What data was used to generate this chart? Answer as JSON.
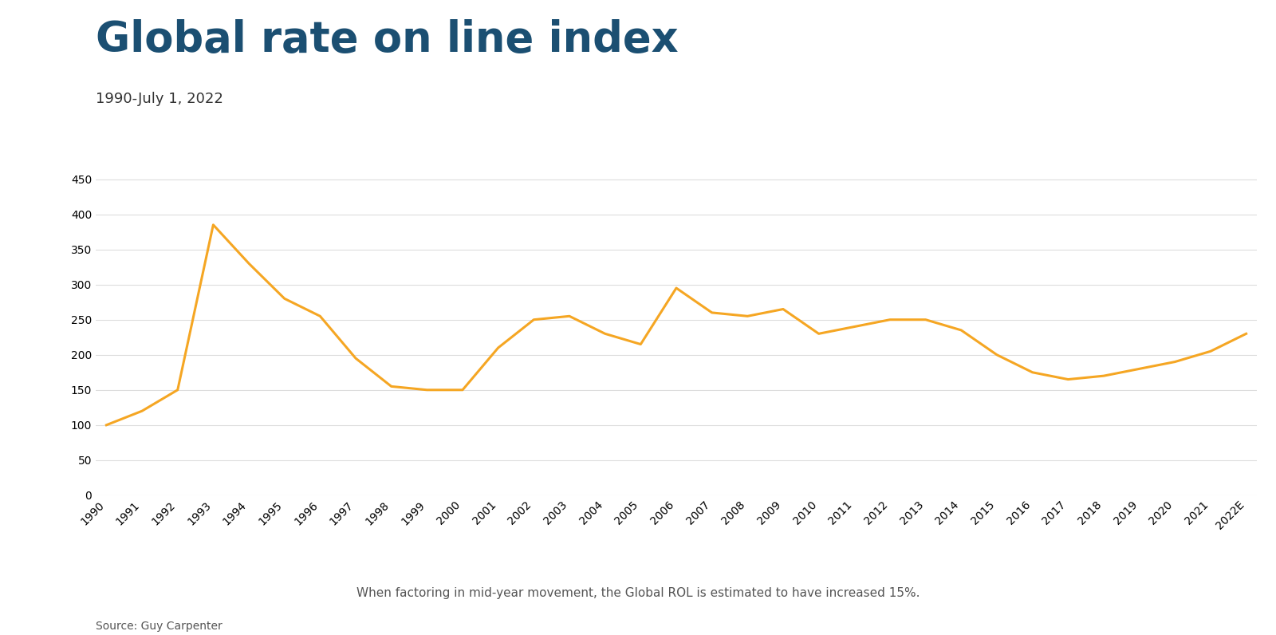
{
  "title": "Global rate on line index",
  "subtitle": "1990-July 1, 2022",
  "footnote": "When factoring in mid-year movement, the Global ROL is estimated to have increased 15%.",
  "source": "Source: Guy Carpenter",
  "title_color": "#1b4f72",
  "subtitle_color": "#333333",
  "line_color": "#f5a623",
  "background_color": "#ffffff",
  "years": [
    "1990",
    "1991",
    "1992",
    "1993",
    "1994",
    "1995",
    "1996",
    "1997",
    "1998",
    "1999",
    "2000",
    "2001",
    "2002",
    "2003",
    "2004",
    "2005",
    "2006",
    "2007",
    "2008",
    "2009",
    "2010",
    "2011",
    "2012",
    "2013",
    "2014",
    "2015",
    "2016",
    "2017",
    "2018",
    "2019",
    "2020",
    "2021",
    "2022E"
  ],
  "values": [
    100,
    120,
    150,
    385,
    330,
    280,
    255,
    195,
    155,
    150,
    150,
    210,
    250,
    255,
    230,
    215,
    295,
    260,
    255,
    265,
    230,
    240,
    250,
    250,
    235,
    200,
    175,
    165,
    170,
    180,
    190,
    205,
    230
  ],
  "ylim": [
    0,
    470
  ],
  "yticks": [
    0,
    50,
    100,
    150,
    200,
    250,
    300,
    350,
    400,
    450
  ],
  "grid_color": "#dddddd",
  "line_width": 2.2,
  "title_fontsize": 38,
  "subtitle_fontsize": 13,
  "footnote_fontsize": 11,
  "source_fontsize": 10,
  "tick_fontsize": 10
}
